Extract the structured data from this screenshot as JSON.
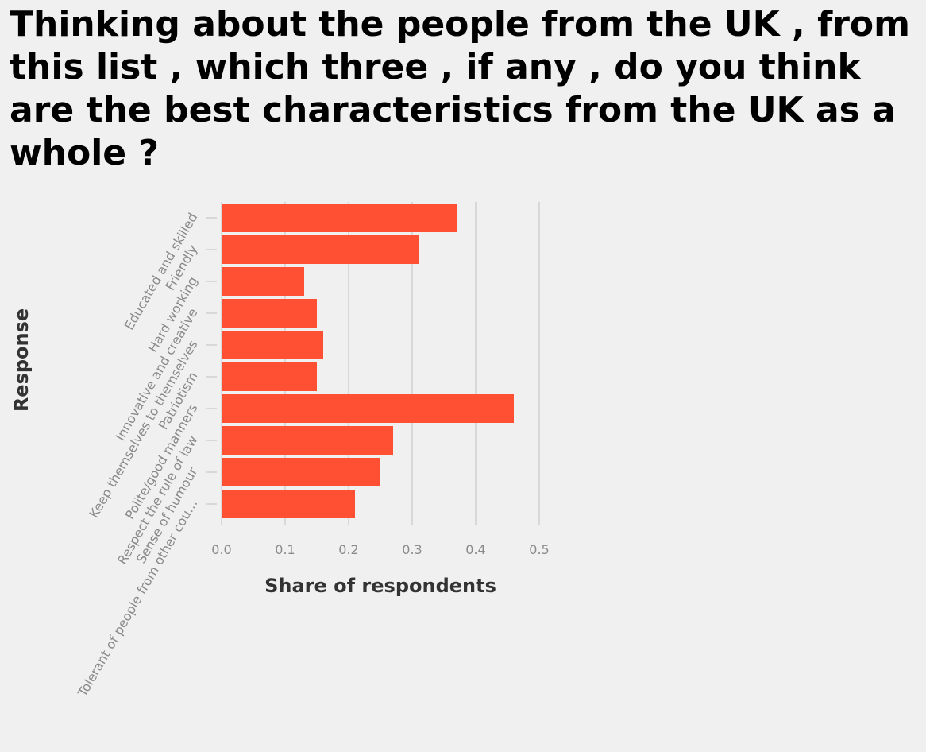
{
  "chart_data": {
    "type": "bar",
    "orientation": "horizontal",
    "title": "Thinking about the people from the UK , from this list , which three , if any , do you think are the best characteristics from the UK as a whole ?",
    "xlabel": "Share of respondents",
    "ylabel": "Response",
    "categories": [
      "Educated and skilled",
      "Friendly",
      "Hard working",
      "Innovative and creative",
      "Keep themselves to themselves",
      "Patriotism",
      "Polite/good manners",
      "Respect the rule of law",
      "Sense of humour",
      "Tolerant of people from other cou…"
    ],
    "values": [
      0.37,
      0.31,
      0.13,
      0.15,
      0.16,
      0.15,
      0.46,
      0.27,
      0.25,
      0.21
    ],
    "xlim": [
      0,
      0.5
    ],
    "xticks": [
      "0.0",
      "0.1",
      "0.2",
      "0.3",
      "0.4",
      "0.5"
    ],
    "grid": true,
    "legend": "none",
    "bar_color": "#ff5033",
    "grid_color": "#cccccc"
  }
}
